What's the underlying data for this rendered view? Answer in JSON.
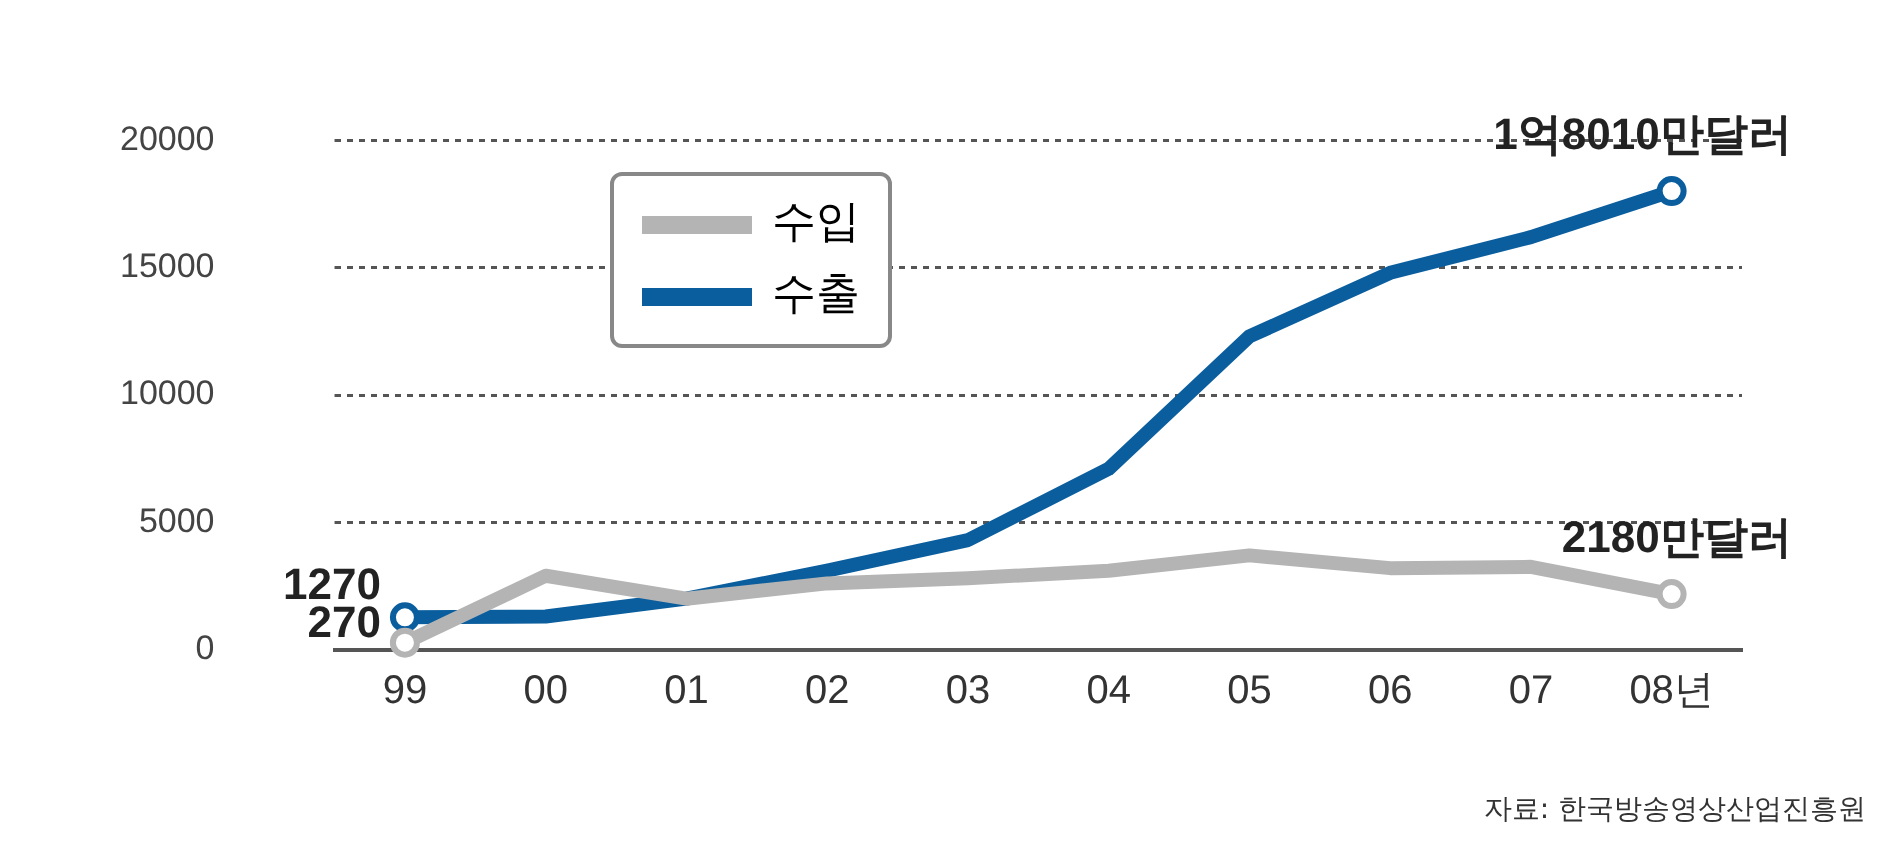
{
  "chart_data": {
    "type": "line",
    "categories": [
      "99",
      "00",
      "01",
      "02",
      "03",
      "04",
      "05",
      "06",
      "07",
      "08년"
    ],
    "series": [
      {
        "name": "수입",
        "color": "#b4b4b4",
        "values": [
          270,
          2900,
          2000,
          2600,
          2800,
          3100,
          3700,
          3200,
          3250,
          2180
        ]
      },
      {
        "name": "수출",
        "color": "#0b5e9e",
        "values": [
          1270,
          1300,
          2000,
          3100,
          4300,
          7100,
          12300,
          14800,
          16200,
          18010
        ]
      }
    ],
    "ylim": [
      0,
      20000
    ],
    "yticks": [
      0,
      5000,
      10000,
      15000,
      20000
    ],
    "grid": "y",
    "legend": "top left",
    "annotations": [
      {
        "text": "1억8010만달러",
        "x": "08년",
        "y": 18010
      },
      {
        "text": "2180만달러",
        "x": "08년",
        "y": 2180
      },
      {
        "text": "1270",
        "x": "99",
        "y": 1270
      },
      {
        "text": "270",
        "x": "99",
        "y": 270
      },
      "자료: 한국방송영상산업진흥원"
    ]
  }
}
